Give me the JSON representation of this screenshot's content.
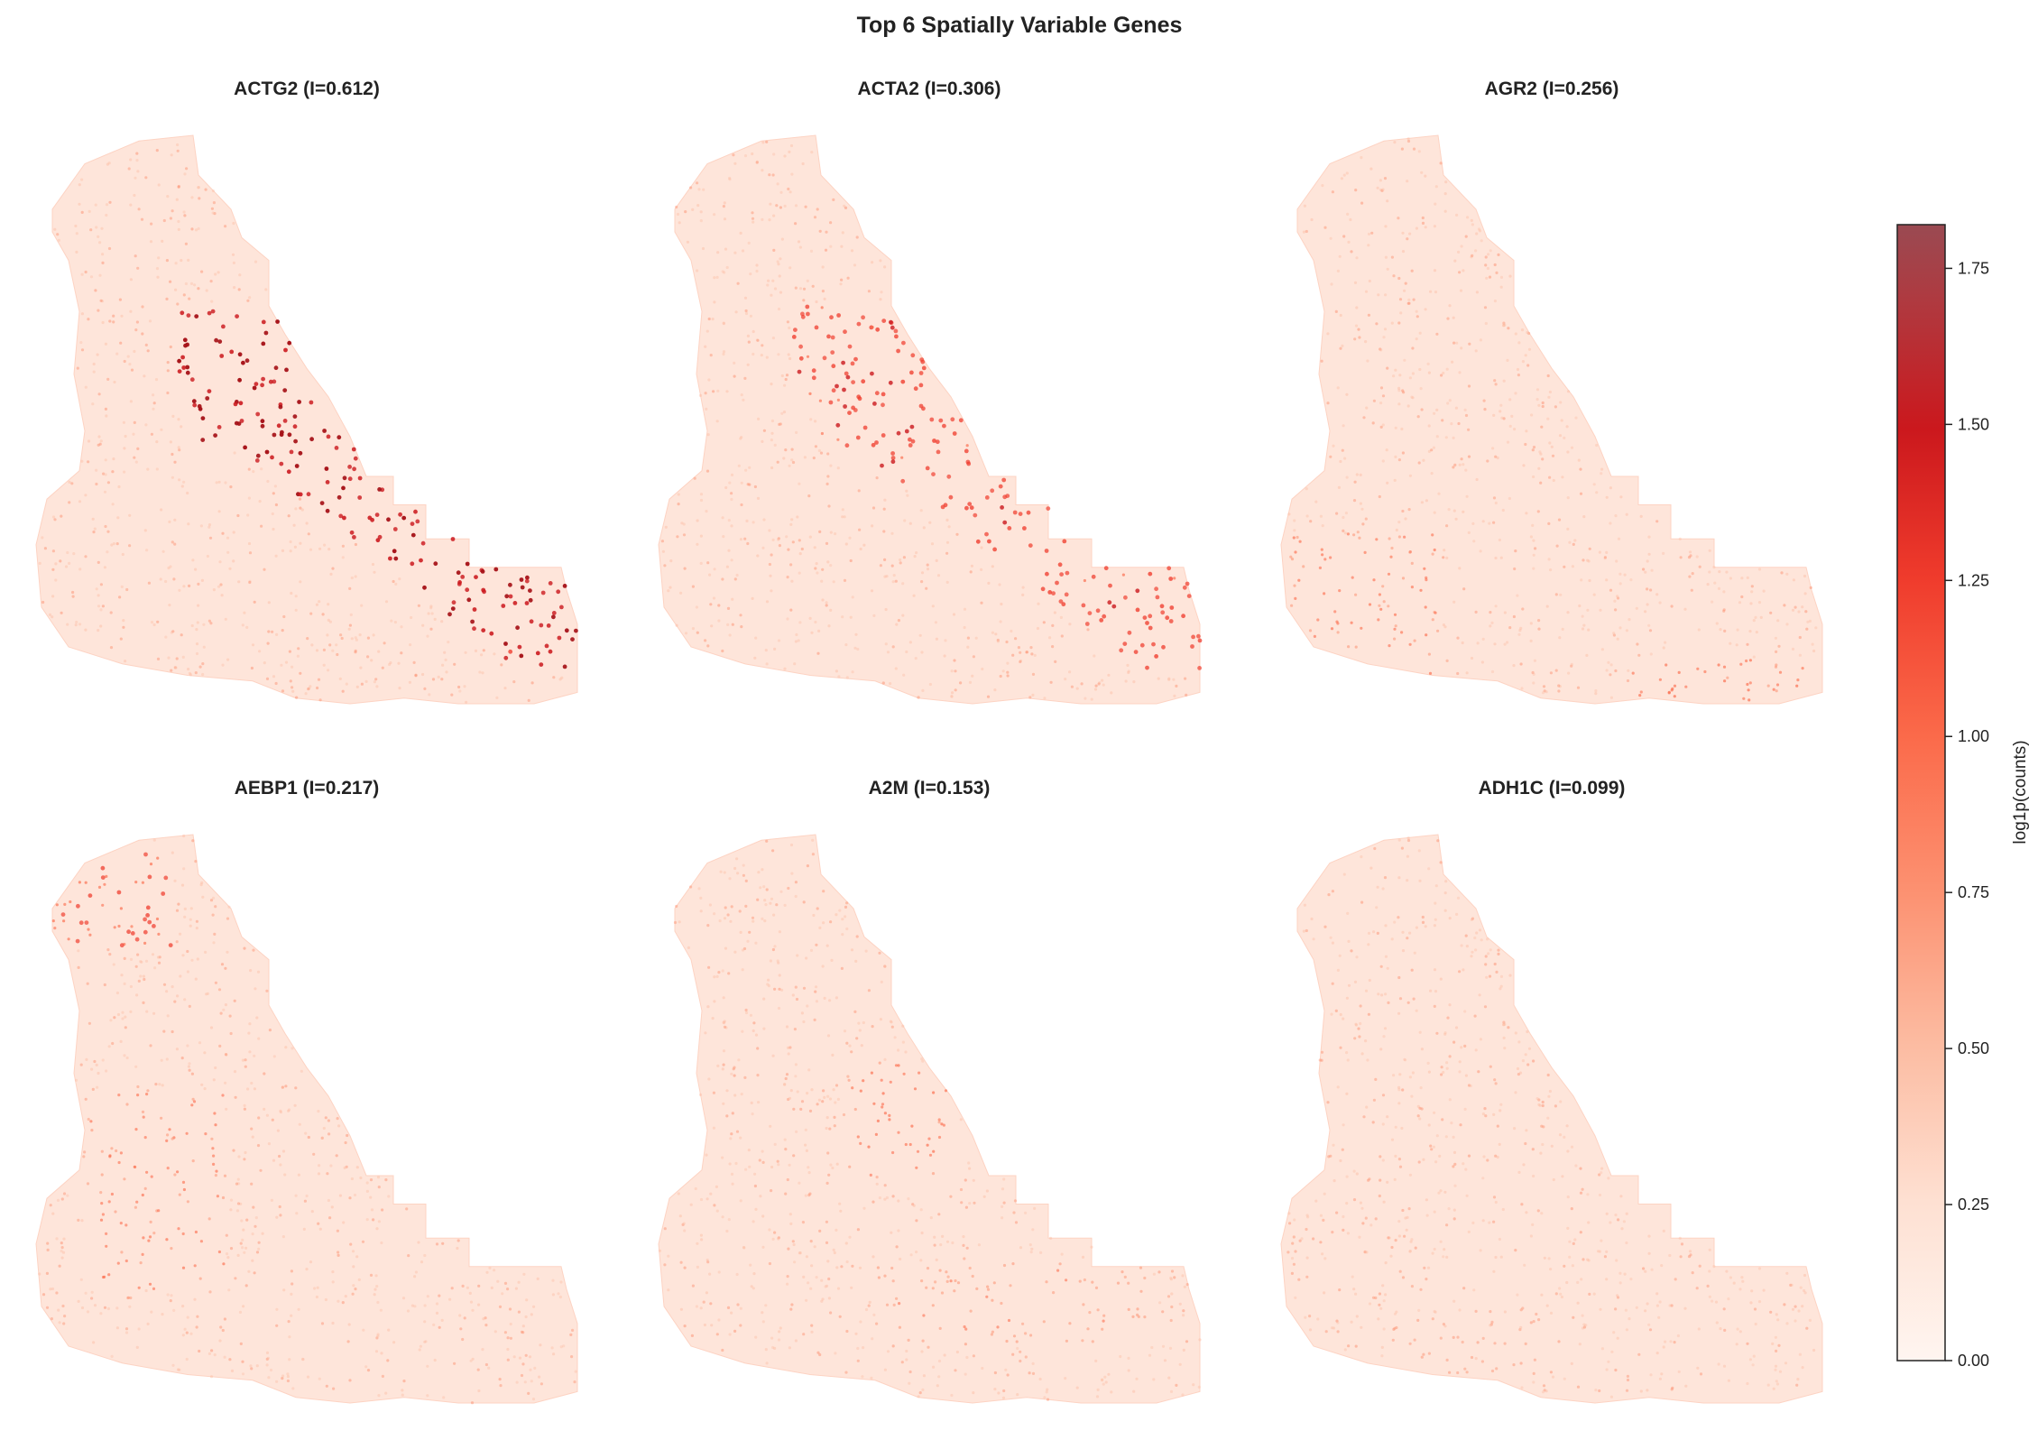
{
  "chart_data": {
    "type": "heatmap",
    "title": "Top 6 Spatially Variable Genes",
    "panels": [
      {
        "gene": "ACTG2",
        "title": "ACTG2 (I=0.612)",
        "morans_i": 0.612
      },
      {
        "gene": "ACTA2",
        "title": "ACTA2 (I=0.306)",
        "morans_i": 0.306
      },
      {
        "gene": "AGR2",
        "title": "AGR2 (I=0.256)",
        "morans_i": 0.256
      },
      {
        "gene": "AEBP1",
        "title": "AEBP1 (I=0.217)",
        "morans_i": 0.217
      },
      {
        "gene": "A2M",
        "title": "A2M (I=0.153)",
        "morans_i": 0.153
      },
      {
        "gene": "ADH1C",
        "title": "ADH1C (I=0.099)",
        "morans_i": 0.099
      }
    ],
    "colorbar": {
      "label": "log1p(counts)",
      "range": [
        0,
        1.82
      ],
      "ticks": [
        0.0,
        0.25,
        0.5,
        0.75,
        1.0,
        1.25,
        1.5,
        1.75
      ],
      "tick_labels": [
        "0.00",
        "0.25",
        "0.50",
        "0.75",
        "1.00",
        "1.25",
        "1.50",
        "1.75"
      ],
      "colormap": "Reds",
      "colors": [
        "#fff5f0",
        "#fee0d2",
        "#fcbba1",
        "#fc9272",
        "#fb6a4a",
        "#ef3b2c",
        "#cb181d",
        "#a50f15",
        "#9a4a52"
      ]
    },
    "axes_visible": false,
    "grid": false
  }
}
